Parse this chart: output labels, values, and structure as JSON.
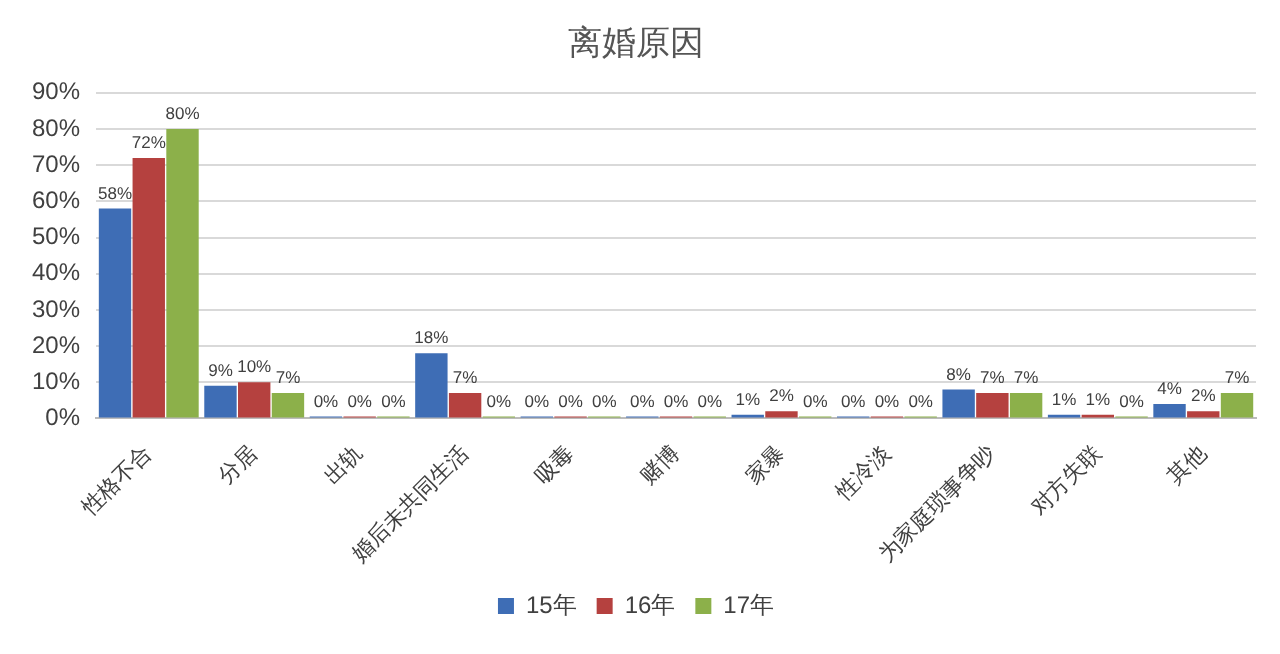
{
  "chart_data": {
    "type": "bar",
    "title": "离婚原因",
    "categories": [
      "性格不合",
      "分居",
      "出轨",
      "婚后未共同生活",
      "吸毒",
      "赌博",
      "家暴",
      "性冷淡",
      "为家庭琐事争吵",
      "对方失联",
      "其他"
    ],
    "series": [
      {
        "name": "15年",
        "color": "#3e6db5",
        "values": [
          58,
          9,
          0,
          18,
          0,
          0,
          1,
          0,
          8,
          1,
          4
        ],
        "value_labels": [
          "58%",
          "9%",
          "0%",
          "18%",
          "0%",
          "0%",
          "1%",
          "0%",
          "8%",
          "1%",
          "4%"
        ]
      },
      {
        "name": "16年",
        "color": "#b5413f",
        "values": [
          72,
          10,
          0,
          7,
          0,
          0,
          2,
          0,
          7,
          1,
          2
        ],
        "value_labels": [
          "72%",
          "10%",
          "0%",
          "7%",
          "0%",
          "0%",
          "2%",
          "0%",
          "7%",
          "1%",
          "2%"
        ]
      },
      {
        "name": "17年",
        "color": "#8cb04a",
        "values": [
          80,
          7,
          0,
          0,
          0,
          0,
          0,
          0,
          7,
          0,
          7
        ],
        "value_labels": [
          "80%",
          "7%",
          "0%",
          "0%",
          "0%",
          "0%",
          "0%",
          "0%",
          "7%",
          "0%",
          "7%"
        ]
      }
    ],
    "ylim": [
      0,
      90
    ],
    "yticks": [
      {
        "value": 0,
        "label": "0%"
      },
      {
        "value": 10,
        "label": "10%"
      },
      {
        "value": 20,
        "label": "20%"
      },
      {
        "value": 30,
        "label": "30%"
      },
      {
        "value": 40,
        "label": "40%"
      },
      {
        "value": 50,
        "label": "50%"
      },
      {
        "value": 60,
        "label": "60%"
      },
      {
        "value": 70,
        "label": "70%"
      },
      {
        "value": 80,
        "label": "80%"
      },
      {
        "value": 90,
        "label": "90%"
      }
    ],
    "grid": "y",
    "legend": "bottom"
  }
}
